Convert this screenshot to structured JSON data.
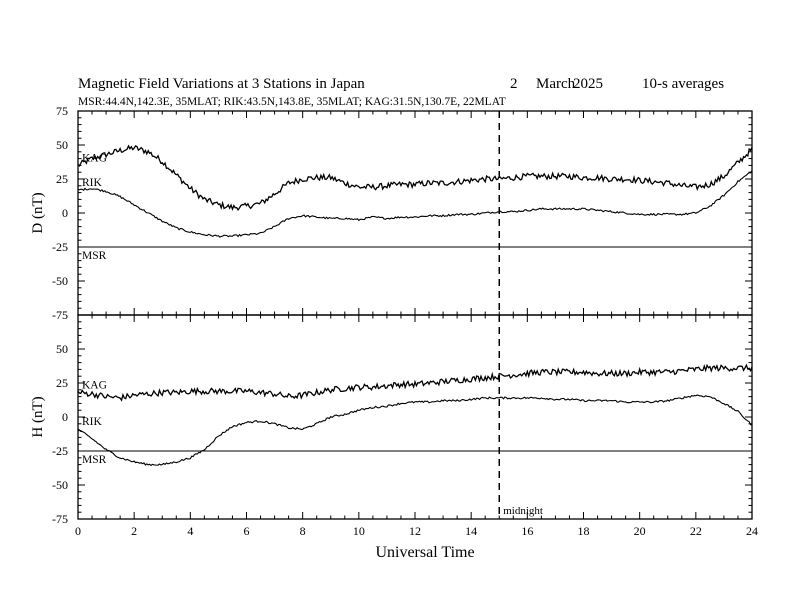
{
  "header": {
    "title": "Magnetic Field Variations at 3 Stations in Japan",
    "day": "2",
    "month": "March",
    "year": "2025",
    "averaging": "10-s averages",
    "stations_line": "MSR:44.4N,142.3E, 35MLAT;  RIK:43.5N,143.8E, 35MLAT;  KAG:31.5N,130.7E, 22MLAT"
  },
  "annotations": {
    "midnight": "midnight",
    "midnight_ut": 15
  },
  "chart_data": [
    {
      "type": "line",
      "panel": "top",
      "ylabel": "D (nT)",
      "ylim": [
        -75,
        75
      ],
      "yticks": [
        75,
        50,
        25,
        0,
        -25,
        -50,
        -75
      ],
      "xlim": [
        0,
        24
      ],
      "series": [
        {
          "name": "KAG",
          "x": [
            0,
            0.5,
            1,
            1.5,
            2,
            2.5,
            3,
            3.5,
            4,
            4.5,
            5,
            5.5,
            6,
            6.5,
            7,
            7.5,
            8,
            8.5,
            9,
            9.5,
            10,
            10.5,
            11,
            11.5,
            12,
            12.5,
            13,
            13.5,
            14,
            14.5,
            15,
            15.5,
            16,
            16.5,
            17,
            17.5,
            18,
            18.5,
            19,
            19.5,
            20,
            20.5,
            21,
            21.5,
            22,
            22.5,
            23,
            23.5,
            24
          ],
          "values": [
            35,
            40,
            43,
            46,
            48,
            45,
            38,
            28,
            18,
            10,
            6,
            4,
            5,
            7,
            14,
            22,
            25,
            26,
            26,
            22,
            19,
            19,
            20,
            21,
            21,
            22,
            22,
            23,
            24,
            25,
            25,
            26,
            27,
            27,
            27,
            27,
            26,
            26,
            25,
            25,
            24,
            23,
            22,
            20,
            19,
            21,
            27,
            37,
            47
          ]
        },
        {
          "name": "RIK",
          "x": [
            0,
            0.5,
            1,
            1.5,
            2,
            2.5,
            3,
            3.5,
            4,
            4.5,
            5,
            5.5,
            6,
            6.5,
            7,
            7.5,
            8,
            8.5,
            9,
            9.5,
            10,
            10.5,
            11,
            11.5,
            12,
            12.5,
            13,
            13.5,
            14,
            14.5,
            15,
            15.5,
            16,
            16.5,
            17,
            17.5,
            18,
            18.5,
            19,
            19.5,
            20,
            20.5,
            21,
            21.5,
            22,
            22.5,
            23,
            23.5,
            24
          ],
          "values": [
            17,
            18,
            16,
            12,
            6,
            0,
            -6,
            -11,
            -14,
            -16,
            -17,
            -17,
            -16,
            -15,
            -10,
            -4,
            -2,
            -3,
            -4,
            -4,
            -5,
            -3,
            -4,
            -3,
            -3,
            -2,
            -2,
            -1,
            -1,
            0,
            1,
            1,
            2,
            3,
            3,
            3,
            3,
            2,
            1,
            0,
            -1,
            -1,
            -1,
            -1,
            0,
            5,
            13,
            23,
            31
          ]
        },
        {
          "name": "MSR",
          "x": [
            0,
            24
          ],
          "values": [
            -25,
            -25
          ]
        }
      ]
    },
    {
      "type": "line",
      "panel": "bottom",
      "ylabel": "H (nT)",
      "xlabel": "Universal Time",
      "ylim": [
        -75,
        75
      ],
      "yticks": [
        75,
        50,
        25,
        0,
        -25,
        -50,
        -75
      ],
      "xlim": [
        0,
        24
      ],
      "xticks": [
        0,
        2,
        4,
        6,
        8,
        10,
        12,
        14,
        16,
        18,
        20,
        22,
        24
      ],
      "series": [
        {
          "name": "KAG",
          "x": [
            0,
            0.5,
            1,
            1.5,
            2,
            2.5,
            3,
            3.5,
            4,
            4.5,
            5,
            5.5,
            6,
            6.5,
            7,
            7.5,
            8,
            8.5,
            9,
            9.5,
            10,
            10.5,
            11,
            11.5,
            12,
            12.5,
            13,
            13.5,
            14,
            14.5,
            15,
            15.5,
            16,
            16.5,
            17,
            17.5,
            18,
            18.5,
            19,
            19.5,
            20,
            20.5,
            21,
            21.5,
            22,
            22.5,
            23,
            23.5,
            24
          ],
          "values": [
            18,
            17,
            15,
            14,
            16,
            17,
            18,
            18,
            19,
            19,
            19,
            19,
            19,
            18,
            17,
            15,
            16,
            18,
            20,
            21,
            22,
            22,
            23,
            24,
            24,
            25,
            26,
            27,
            28,
            29,
            30,
            31,
            32,
            33,
            33,
            33,
            33,
            32,
            32,
            32,
            33,
            33,
            33,
            34,
            35,
            36,
            36,
            36,
            36
          ]
        },
        {
          "name": "RIK",
          "x": [
            0,
            0.5,
            1,
            1.5,
            2,
            2.5,
            3,
            3.5,
            4,
            4.5,
            5,
            5.5,
            6,
            6.5,
            7,
            7.5,
            8,
            8.5,
            9,
            9.5,
            10,
            10.5,
            11,
            11.5,
            12,
            12.5,
            13,
            13.5,
            14,
            14.5,
            15,
            15.5,
            16,
            16.5,
            17,
            17.5,
            18,
            18.5,
            19,
            19.5,
            20,
            20.5,
            21,
            21.5,
            22,
            22.5,
            23,
            23.5,
            24
          ],
          "values": [
            -9,
            -16,
            -24,
            -30,
            -33,
            -35,
            -35,
            -33,
            -30,
            -24,
            -14,
            -7,
            -4,
            -3,
            -5,
            -8,
            -9,
            -5,
            0,
            2,
            5,
            7,
            8,
            10,
            11,
            11,
            12,
            12,
            13,
            14,
            14,
            14,
            14,
            14,
            13,
            13,
            12,
            12,
            12,
            11,
            11,
            11,
            12,
            14,
            16,
            15,
            10,
            4,
            -6
          ]
        },
        {
          "name": "MSR",
          "x": [
            0,
            24
          ],
          "values": [
            -25,
            -25
          ]
        }
      ]
    }
  ]
}
